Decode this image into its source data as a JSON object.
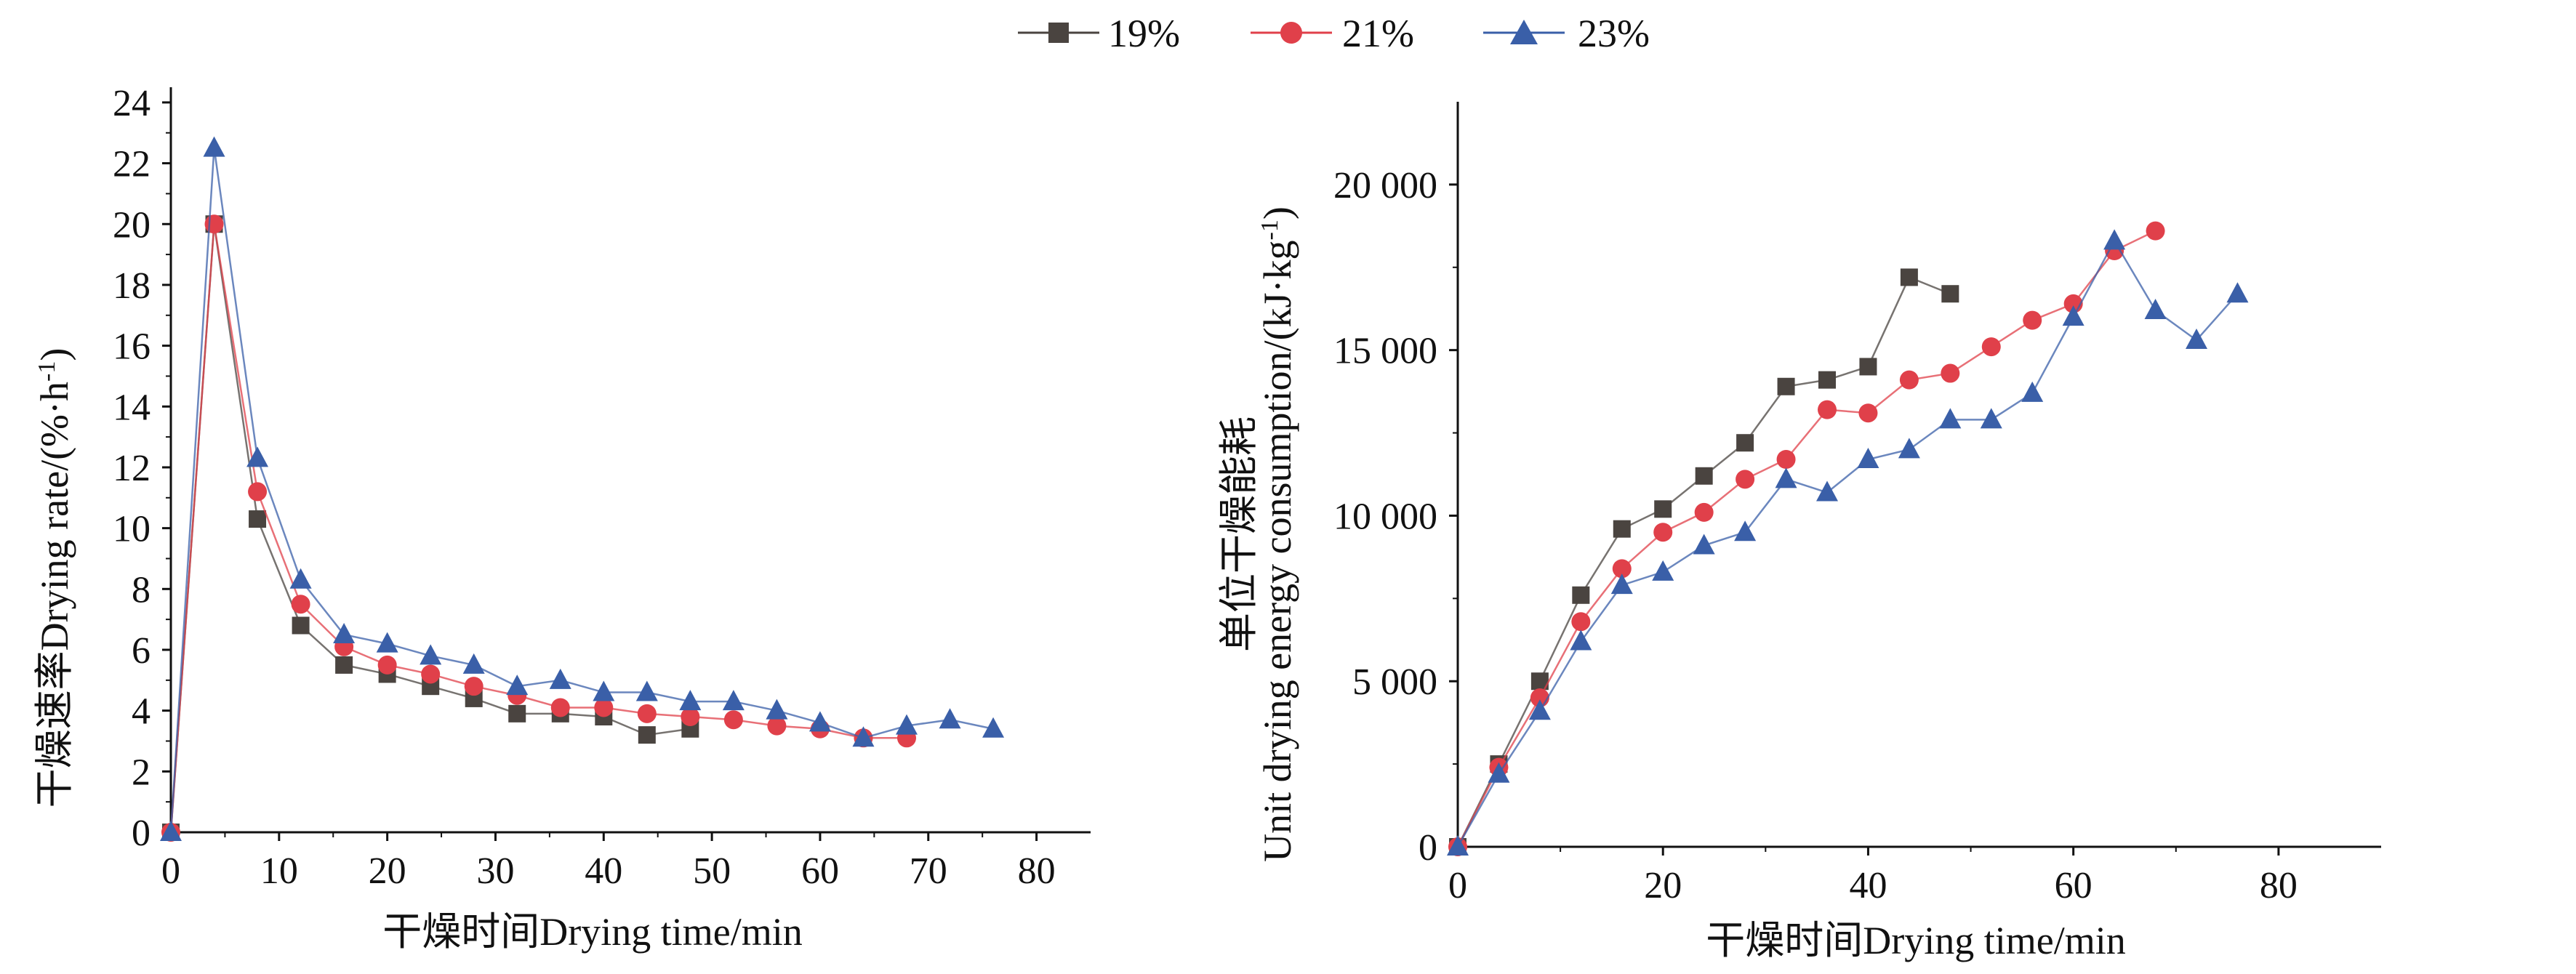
{
  "legend": {
    "entries": [
      {
        "label": "19%",
        "color": "#4a4440",
        "marker": "square"
      },
      {
        "label": "21%",
        "color": "#e0404a",
        "marker": "circle"
      },
      {
        "label": "23%",
        "color": "#3a5fa8",
        "marker": "triangle"
      }
    ]
  },
  "chart_data": [
    {
      "type": "line",
      "title": "",
      "xlabel": "干燥时间Drying time/min",
      "ylabel": "干燥速率Drying rate/(%·h",
      "ylabel_sup": "-1",
      "ylabel_close": ")",
      "xlim": [
        0,
        85
      ],
      "ylim": [
        0,
        24.5
      ],
      "xticks": [
        0,
        10,
        20,
        30,
        40,
        50,
        60,
        70,
        80
      ],
      "yticks": [
        0,
        2,
        4,
        6,
        8,
        10,
        12,
        14,
        16,
        18,
        20,
        22,
        24
      ],
      "xtick_labels": [
        "0",
        "10",
        "20",
        "30",
        "40",
        "50",
        "60",
        "70",
        "80"
      ],
      "ytick_labels": [
        "0",
        "2",
        "4",
        "6",
        "8",
        "10",
        "12",
        "14",
        "16",
        "18",
        "20",
        "22",
        "24"
      ],
      "series": [
        {
          "name": "19%",
          "x": [
            0,
            4,
            8,
            12,
            16,
            20,
            24,
            28,
            32,
            36,
            40,
            44,
            48
          ],
          "values": [
            0,
            20.0,
            10.3,
            6.8,
            5.5,
            5.2,
            4.8,
            4.4,
            3.9,
            3.9,
            3.8,
            3.2,
            3.4
          ]
        },
        {
          "name": "21%",
          "x": [
            0,
            4,
            8,
            12,
            16,
            20,
            24,
            28,
            32,
            36,
            40,
            44,
            48,
            52,
            56,
            60,
            64,
            68
          ],
          "values": [
            0,
            20.0,
            11.2,
            7.5,
            6.1,
            5.5,
            5.2,
            4.8,
            4.5,
            4.1,
            4.1,
            3.9,
            3.8,
            3.7,
            3.5,
            3.4,
            3.1,
            3.1
          ]
        },
        {
          "name": "23%",
          "x": [
            0,
            4,
            8,
            12,
            16,
            20,
            24,
            28,
            32,
            36,
            40,
            44,
            48,
            52,
            56,
            60,
            64,
            68,
            72,
            76
          ],
          "values": [
            0,
            22.5,
            12.3,
            8.3,
            6.5,
            6.2,
            5.8,
            5.5,
            4.8,
            5.0,
            4.6,
            4.6,
            4.3,
            4.3,
            4.0,
            3.6,
            3.1,
            3.5,
            3.7,
            3.4
          ]
        }
      ]
    },
    {
      "type": "line",
      "title": "",
      "xlabel": "干燥时间Drying time/min",
      "ylabel_line1": "单位干燥能耗",
      "ylabel_line2": "Unit drying energy consumption/(kJ·kg",
      "ylabel_sup": "-1",
      "ylabel_close": ")",
      "xlim": [
        0,
        90
      ],
      "ylim": [
        0,
        22500
      ],
      "xticks": [
        0,
        20,
        40,
        60,
        80
      ],
      "yticks": [
        0,
        5000,
        10000,
        15000,
        20000
      ],
      "xtick_labels": [
        "0",
        "20",
        "40",
        "60",
        "80"
      ],
      "ytick_labels": [
        "0",
        "5 000",
        "10 000",
        "15 000",
        "20 000"
      ],
      "series": [
        {
          "name": "19%",
          "x": [
            0,
            4,
            8,
            12,
            16,
            20,
            24,
            28,
            32,
            36,
            40,
            44,
            48
          ],
          "values": [
            0,
            2500,
            5000,
            7600,
            9600,
            10200,
            11200,
            12200,
            13900,
            14100,
            14500,
            17200,
            16700
          ]
        },
        {
          "name": "21%",
          "x": [
            0,
            4,
            8,
            12,
            16,
            20,
            24,
            28,
            32,
            36,
            40,
            44,
            48,
            52,
            56,
            60,
            64,
            68
          ],
          "values": [
            0,
            2400,
            4500,
            6800,
            8400,
            9500,
            10100,
            11100,
            11700,
            13200,
            13100,
            14100,
            14300,
            15100,
            15900,
            16400,
            18000,
            18600
          ]
        },
        {
          "name": "23%",
          "x": [
            0,
            4,
            8,
            12,
            16,
            20,
            24,
            28,
            32,
            36,
            40,
            44,
            48,
            52,
            56,
            60,
            64,
            68,
            72,
            76
          ],
          "values": [
            0,
            2200,
            4100,
            6200,
            7900,
            8300,
            9100,
            9500,
            11100,
            10700,
            11700,
            12000,
            12900,
            12900,
            13700,
            16000,
            18300,
            16200,
            15300,
            16700
          ]
        }
      ]
    }
  ]
}
